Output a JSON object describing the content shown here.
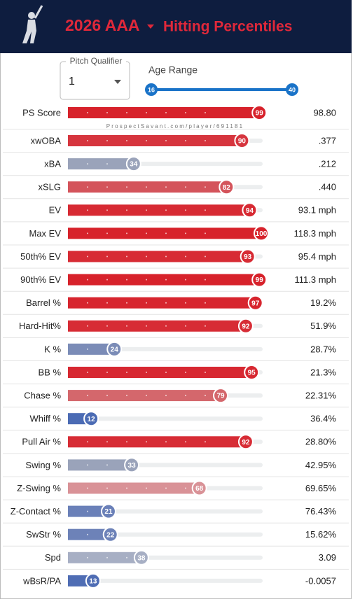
{
  "header": {
    "season": "2026 AAA",
    "title": "Hitting Percentiles"
  },
  "controls": {
    "pitch_qualifier_label": "Pitch Qualifier",
    "pitch_qualifier_value": "1",
    "age_range_label": "Age Range",
    "age_min": 16,
    "age_max": 40
  },
  "watermark": "ProspectSavant.com/player/691181",
  "chart_data": {
    "type": "bar",
    "orientation": "horizontal",
    "xlim": [
      0,
      100
    ],
    "categories": [
      "PS Score",
      "xwOBA",
      "xBA",
      "xSLG",
      "EV",
      "Max EV",
      "50th% EV",
      "90th% EV",
      "Barrel %",
      "Hard-Hit%",
      "K %",
      "BB %",
      "Chase %",
      "Whiff %",
      "Pull Air %",
      "Swing %",
      "Z-Swing %",
      "Z-Contact %",
      "SwStr %",
      "Spd",
      "wBsR/PA"
    ],
    "values": [
      99,
      90,
      34,
      82,
      94,
      100,
      93,
      99,
      97,
      92,
      24,
      95,
      79,
      12,
      92,
      33,
      68,
      21,
      22,
      38,
      13
    ],
    "colors": [
      "#d7222b",
      "#d6353e",
      "#9aa3ba",
      "#d4545b",
      "#d72a33",
      "#d7222b",
      "#d72b34",
      "#d7222b",
      "#d7252e",
      "#d72c35",
      "#7b8cb7",
      "#d72831",
      "#d4676c",
      "#4b6bb4",
      "#d72c35",
      "#9aa3ba",
      "#d99297",
      "#6a80b8",
      "#6d82b8",
      "#a7afc4",
      "#4f6db4"
    ],
    "stats": [
      "98.80",
      ".377",
      ".212",
      ".440",
      "93.1 mph",
      "118.3 mph",
      "95.4 mph",
      "111.3 mph",
      "19.2%",
      "51.9%",
      "28.7%",
      "21.3%",
      "22.31%",
      "36.4%",
      "28.80%",
      "42.95%",
      "69.65%",
      "76.43%",
      "15.62%",
      "3.09",
      "-0.0057"
    ]
  }
}
